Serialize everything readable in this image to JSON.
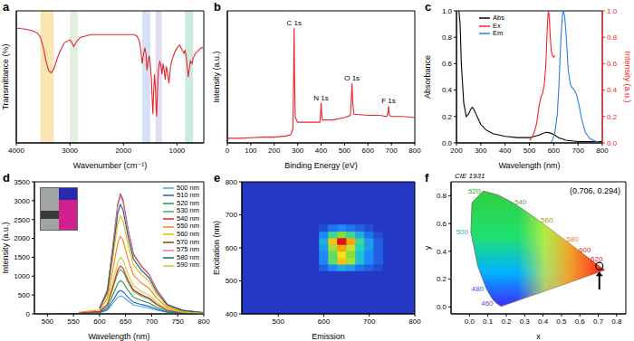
{
  "chart_data": [
    {
      "panel_label": "a",
      "type": "line",
      "x_label": "Wavenumber (cm⁻¹)",
      "y_label": "Transmittance (%)",
      "xlim": [
        4000,
        500
      ],
      "xticks": [
        4000,
        3000,
        2000,
        1000
      ],
      "ylim": [
        0,
        100
      ],
      "tick_labels": "x",
      "bands": [
        {
          "from": 3300,
          "to": 3550,
          "color": "#f9dc9c"
        },
        {
          "from": 2850,
          "to": 3000,
          "color": "#d9ead3"
        },
        {
          "from": 1500,
          "to": 1650,
          "color": "#c5d5f0"
        },
        {
          "from": 1280,
          "to": 1400,
          "color": "#d9d2ee"
        },
        {
          "from": 700,
          "to": 850,
          "color": "#b7e4d8"
        }
      ],
      "series": [
        {
          "color": "#e8262c",
          "x": [
            4000,
            3800,
            3700,
            3600,
            3550,
            3500,
            3450,
            3400,
            3350,
            3300,
            3250,
            3200,
            3100,
            3000,
            2960,
            2930,
            2900,
            2870,
            2800,
            2600,
            2400,
            2200,
            2000,
            1800,
            1750,
            1700,
            1670,
            1650,
            1630,
            1600,
            1580,
            1560,
            1540,
            1520,
            1500,
            1480,
            1460,
            1450,
            1440,
            1420,
            1400,
            1390,
            1380,
            1370,
            1350,
            1320,
            1300,
            1280,
            1260,
            1240,
            1220,
            1200,
            1180,
            1150,
            1120,
            1100,
            1050,
            1000,
            950,
            900,
            870,
            850,
            830,
            810,
            790,
            770,
            750,
            720,
            700,
            680,
            650,
            600,
            550,
            500
          ],
          "values": [
            87,
            86,
            85,
            83,
            80,
            73,
            63,
            55,
            53,
            56,
            62,
            68,
            76,
            78,
            76,
            73,
            75,
            77,
            80,
            82,
            82,
            82,
            82,
            82,
            81,
            77,
            68,
            60,
            66,
            72,
            68,
            55,
            62,
            66,
            60,
            50,
            30,
            22,
            35,
            52,
            40,
            25,
            20,
            32,
            55,
            62,
            58,
            52,
            60,
            55,
            48,
            58,
            54,
            45,
            58,
            62,
            68,
            72,
            74,
            70,
            68,
            70,
            66,
            58,
            50,
            56,
            62,
            60,
            64,
            66,
            68,
            70,
            72,
            72
          ]
        }
      ]
    },
    {
      "panel_label": "b",
      "type": "line",
      "x_label": "Binding Energy (eV)",
      "y_label": "Intensity (a.u.)",
      "xlim": [
        0,
        800
      ],
      "xticks": [
        0,
        100,
        200,
        300,
        400,
        500,
        600,
        700,
        800
      ],
      "ylim": [
        0,
        115
      ],
      "tick_labels": "x",
      "series": [
        {
          "color": "#e8262c",
          "x": [
            0,
            50,
            100,
            150,
            200,
            250,
            270,
            280,
            283,
            285,
            287,
            290,
            300,
            350,
            395,
            398,
            400,
            402,
            405,
            450,
            500,
            525,
            529,
            532,
            535,
            540,
            600,
            650,
            680,
            685,
            688,
            691,
            700,
            750,
            800
          ],
          "values": [
            4,
            4,
            4.5,
            5,
            5,
            6,
            7,
            12,
            60,
            100,
            55,
            22,
            18,
            18,
            18,
            26,
            35,
            27,
            20,
            20,
            22,
            24,
            38,
            52,
            35,
            25,
            24,
            24,
            23,
            26,
            32,
            24,
            23,
            23,
            22
          ]
        }
      ],
      "peaks": [
        {
          "label": "C 1s",
          "x": 285,
          "y": 100
        },
        {
          "label": "N 1s",
          "x": 400,
          "y": 35
        },
        {
          "label": "O 1s",
          "x": 532,
          "y": 52
        },
        {
          "label": "F 1s",
          "x": 688,
          "y": 32
        }
      ]
    },
    {
      "panel_label": "c",
      "type": "line",
      "x_label": "Wavelength (nm)",
      "y_label": "Absorbance",
      "y2_label": "Intensity (a.u.)",
      "xlim": [
        200,
        800
      ],
      "xticks": [
        200,
        300,
        400,
        500,
        600,
        700,
        800
      ],
      "ylim": [
        0,
        1
      ],
      "yticks": [
        {
          "value": 0,
          "label": "0.0"
        },
        0.2,
        0.4,
        0.6,
        0.8,
        {
          "value": 1,
          "label": "1.0"
        }
      ],
      "y2lim": [
        0,
        1
      ],
      "y2ticks": [
        {
          "value": 0,
          "label": "0.0"
        },
        0.2,
        0.4,
        0.6,
        0.8,
        {
          "value": 1,
          "label": "1.0"
        }
      ],
      "legend": "upper left",
      "series": [
        {
          "name": "Abs",
          "color": "#000000",
          "x": [
            210,
            215,
            220,
            230,
            240,
            250,
            260,
            265,
            270,
            280,
            290,
            300,
            320,
            350,
            400,
            450,
            500,
            520,
            540,
            560,
            570,
            580,
            600,
            620,
            650,
            700,
            750,
            800
          ],
          "values": [
            1.0,
            0.9,
            0.6,
            0.3,
            0.2,
            0.22,
            0.26,
            0.27,
            0.26,
            0.22,
            0.18,
            0.14,
            0.1,
            0.07,
            0.05,
            0.04,
            0.04,
            0.05,
            0.06,
            0.075,
            0.08,
            0.078,
            0.065,
            0.04,
            0.02,
            0.01,
            0.01,
            0.01
          ]
        },
        {
          "name": "Ex",
          "color": "#ff2020",
          "axis": "y2",
          "x": [
            500,
            510,
            520,
            530,
            540,
            548,
            555,
            562,
            568,
            572,
            576,
            579,
            582,
            586,
            590,
            595,
            600,
            605
          ],
          "values": [
            0.02,
            0.04,
            0.08,
            0.15,
            0.28,
            0.35,
            0.38,
            0.45,
            0.6,
            0.8,
            0.96,
            1.0,
            0.95,
            0.8,
            0.7,
            0.66,
            0.65,
            0.66
          ]
        },
        {
          "name": "Em",
          "color": "#2f7fe0",
          "axis": "y2",
          "x": [
            585,
            595,
            605,
            615,
            622,
            630,
            636,
            640,
            645,
            650,
            655,
            660,
            668,
            675,
            685,
            695,
            705,
            715,
            730,
            750,
            775,
            800
          ],
          "values": [
            0.0,
            0.02,
            0.08,
            0.22,
            0.45,
            0.8,
            0.97,
            1.0,
            0.96,
            0.85,
            0.7,
            0.55,
            0.45,
            0.42,
            0.4,
            0.36,
            0.28,
            0.18,
            0.08,
            0.03,
            0.01,
            0.0
          ]
        }
      ]
    },
    {
      "panel_label": "d",
      "type": "line",
      "x_label": "Wavelength (nm)",
      "y_label": "Intensity (a.u.)",
      "xlim": [
        475,
        800
      ],
      "xticks": [
        500,
        550,
        600,
        650,
        700,
        750,
        800
      ],
      "ylim": [
        0,
        3500
      ],
      "yticks": [
        0,
        500,
        1000,
        1500,
        2000,
        2500,
        3000,
        3500
      ],
      "legend": "upper right",
      "x": [
        520,
        560,
        600,
        615,
        625,
        635,
        640,
        645,
        655,
        665,
        680,
        695,
        710,
        730,
        760,
        800
      ],
      "series": [
        {
          "name": "500 nm",
          "color": "#4fa3e0",
          "values": [
            5,
            10,
            24,
            96,
            264,
            442,
            480,
            456,
            336,
            240,
            192,
            158,
            96,
            38,
            14,
            5
          ]
        },
        {
          "name": "510 nm",
          "color": "#1f5fbf",
          "values": [
            6,
            12,
            31,
            124,
            341,
            570,
            620,
            589,
            434,
            310,
            248,
            205,
            124,
            50,
            19,
            6
          ]
        },
        {
          "name": "520 nm",
          "color": "#2e8b57",
          "values": [
            null,
            18,
            44,
            176,
            484,
            810,
            880,
            836,
            616,
            440,
            352,
            290,
            176,
            70,
            26,
            9
          ]
        },
        {
          "name": "530 nm",
          "color": "#3cb44b",
          "values": [
            null,
            24,
            59,
            236,
            649,
            1086,
            1180,
            1121,
            826,
            590,
            472,
            389,
            236,
            94,
            35,
            12
          ]
        },
        {
          "name": "540 nm",
          "color": "#e02020",
          "values": [
            null,
            25,
            64,
            254,
            699,
            1168,
            1270,
            1207,
            889,
            635,
            508,
            419,
            254,
            102,
            38,
            13
          ]
        },
        {
          "name": "550 nm",
          "color": "#ff7f0e",
          "values": [
            null,
            41,
            103,
            410,
            1128,
            1886,
            2050,
            1948,
            1435,
            1025,
            820,
            677,
            410,
            164,
            62,
            21
          ]
        },
        {
          "name": "560 nm",
          "color": "#f0b400",
          "values": [
            null,
            null,
            130,
            520,
            1430,
            2392,
            2600,
            2470,
            1820,
            1300,
            1040,
            858,
            520,
            208,
            78,
            26
          ]
        },
        {
          "name": "570 nm",
          "color": "#8b4513",
          "values": [
            null,
            null,
            159,
            636,
            1749,
            2926,
            3180,
            3021,
            2226,
            1590,
            1272,
            1049,
            636,
            254,
            95,
            32
          ]
        },
        {
          "name": "575 nm",
          "color": "#e377c2",
          "values": [
            null,
            null,
            156,
            624,
            1716,
            2870,
            3120,
            2964,
            2184,
            1560,
            1248,
            1030,
            624,
            250,
            94,
            31
          ]
        },
        {
          "name": "580 nm",
          "color": "#17607a",
          "values": [
            null,
            null,
            145,
            580,
            1595,
            2668,
            2900,
            2755,
            2030,
            1450,
            1160,
            957,
            580,
            232,
            87,
            29
          ]
        },
        {
          "name": "590 nm",
          "color": "#d4c93a",
          "values": [
            null,
            null,
            null,
            300,
            825,
            1380,
            1500,
            1425,
            1050,
            750,
            600,
            495,
            300,
            120,
            45,
            15
          ]
        }
      ]
    },
    {
      "panel_label": "e",
      "type": "heatmap",
      "x_label": "Emission",
      "y_label": "Excitation (nm)",
      "xlim": [
        420,
        800
      ],
      "xticks": [
        500,
        600,
        700,
        800
      ],
      "ylim": [
        400,
        800
      ],
      "yticks": [
        400,
        500,
        600,
        700,
        800
      ],
      "heatmap": {
        "x": [
          600,
          620,
          640,
          660,
          680,
          700,
          720
        ],
        "y": [
          540,
          560,
          580,
          600,
          620,
          640,
          660
        ],
        "z": [
          [
            0.1,
            0.2,
            0.3,
            0.25,
            0.15,
            0.1,
            0.05
          ],
          [
            0.2,
            0.5,
            0.75,
            0.6,
            0.35,
            0.2,
            0.1
          ],
          [
            0.2,
            0.5,
            0.7,
            0.55,
            0.35,
            0.2,
            0.1
          ],
          [
            0.25,
            0.6,
            0.8,
            0.65,
            0.4,
            0.25,
            0.1
          ],
          [
            0.3,
            0.75,
            1.0,
            0.8,
            0.45,
            0.25,
            0.1
          ],
          [
            0.2,
            0.45,
            0.55,
            0.45,
            0.3,
            0.15,
            0.05
          ],
          [
            0.05,
            0.15,
            0.2,
            0.15,
            0.1,
            0.05,
            0.0
          ]
        ]
      }
    },
    {
      "panel_label": "f",
      "type": "scatter",
      "title": "CIE 1931",
      "x_label": "x",
      "y_label": "y",
      "xlim": [
        -0.1,
        0.85
      ],
      "xticks": [
        {
          "value": 0,
          "label": "0.0"
        },
        0.1,
        0.2,
        0.3,
        0.4,
        0.5,
        0.6,
        0.7,
        0.8
      ],
      "ylim": [
        -0.05,
        0.9
      ],
      "yticks": [
        {
          "value": 0,
          "label": "0.0"
        },
        0.2,
        0.4,
        0.6,
        0.8
      ],
      "locus": {
        "wavelength": [
          380,
          440,
          450,
          460,
          470,
          480,
          490,
          500,
          510,
          520,
          530,
          540,
          550,
          560,
          570,
          580,
          590,
          600,
          620,
          700
        ],
        "x": [
          0.1741,
          0.1644,
          0.1566,
          0.144,
          0.1241,
          0.0913,
          0.0454,
          0.0082,
          0.0139,
          0.0743,
          0.1547,
          0.2296,
          0.3016,
          0.3731,
          0.4441,
          0.5125,
          0.5752,
          0.627,
          0.6915,
          0.7347
        ],
        "y": [
          0.005,
          0.0109,
          0.0177,
          0.0297,
          0.0578,
          0.1327,
          0.295,
          0.5384,
          0.7502,
          0.8338,
          0.8059,
          0.7543,
          0.6923,
          0.6245,
          0.5547,
          0.4866,
          0.4242,
          0.3725,
          0.3083,
          0.2653
        ]
      },
      "wavelength_labels": [
        460,
        480,
        500,
        520,
        540,
        560,
        580,
        600,
        620
      ],
      "colors": [
        "#7b3fd6",
        "#3a5bd9",
        "#1fa8c8",
        "#2aa52a",
        "#5aa82a",
        "#a0a020",
        "#e08a20",
        "#e02a2a",
        "#e02020"
      ],
      "point": {
        "x": 0.706,
        "y": 0.294,
        "label": "(0.706, 0.294)"
      }
    }
  ]
}
